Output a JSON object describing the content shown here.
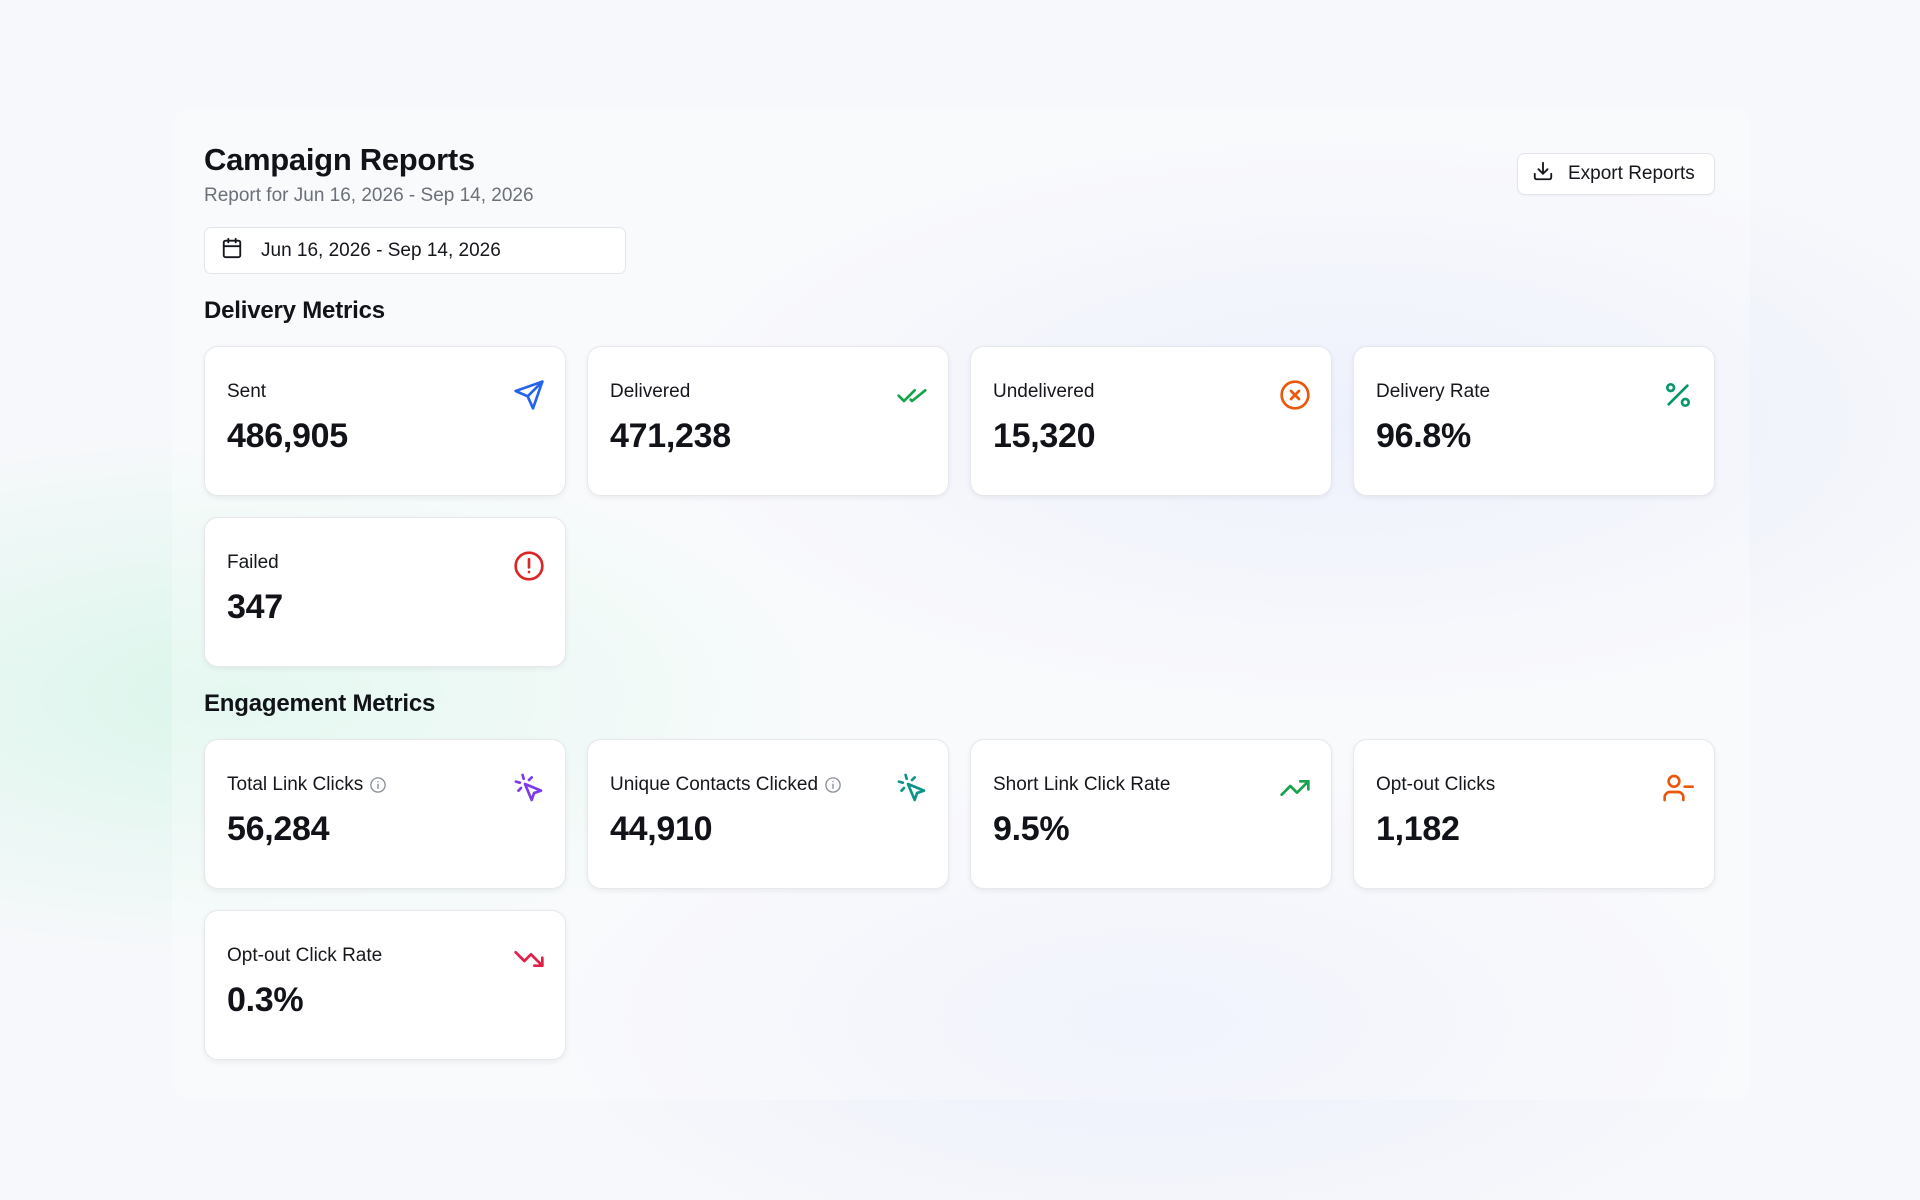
{
  "header": {
    "title": "Campaign Reports",
    "subtitle": "Report for Jun 16, 2026 - Sep 14, 2026",
    "export_label": "Export Reports",
    "export_icon": "download-icon"
  },
  "date_range": {
    "value": "Jun 16, 2026 - Sep 14, 2026",
    "icon": "calendar-icon"
  },
  "delivery": {
    "title": "Delivery Metrics",
    "cards": [
      {
        "label": "Sent",
        "value": "486,905",
        "icon": "send-icon",
        "color": "#2563eb"
      },
      {
        "label": "Delivered",
        "value": "471,238",
        "icon": "double-check-icon",
        "color": "#16a34a"
      },
      {
        "label": "Undelivered",
        "value": "15,320",
        "icon": "x-circle-icon",
        "color": "#ea580c"
      },
      {
        "label": "Delivery Rate",
        "value": "96.8%",
        "icon": "percent-icon",
        "color": "#059669"
      },
      {
        "label": "Failed",
        "value": "347",
        "icon": "alert-circle-icon",
        "color": "#dc2626"
      }
    ]
  },
  "engagement": {
    "title": "Engagement Metrics",
    "cards": [
      {
        "label": "Total Link Clicks",
        "value": "56,284",
        "icon": "pointer-click-icon",
        "color": "#7c3aed",
        "info": true
      },
      {
        "label": "Unique Contacts Clicked",
        "value": "44,910",
        "icon": "pointer-click-icon",
        "color": "#0d9488",
        "info": true
      },
      {
        "label": "Short Link Click Rate",
        "value": "9.5%",
        "icon": "trending-up-icon",
        "color": "#16a34a"
      },
      {
        "label": "Opt-out Clicks",
        "value": "1,182",
        "icon": "user-minus-icon",
        "color": "#ea580c"
      },
      {
        "label": "Opt-out Click Rate",
        "value": "0.3%",
        "icon": "trending-down-icon",
        "color": "#e11d48"
      }
    ]
  }
}
